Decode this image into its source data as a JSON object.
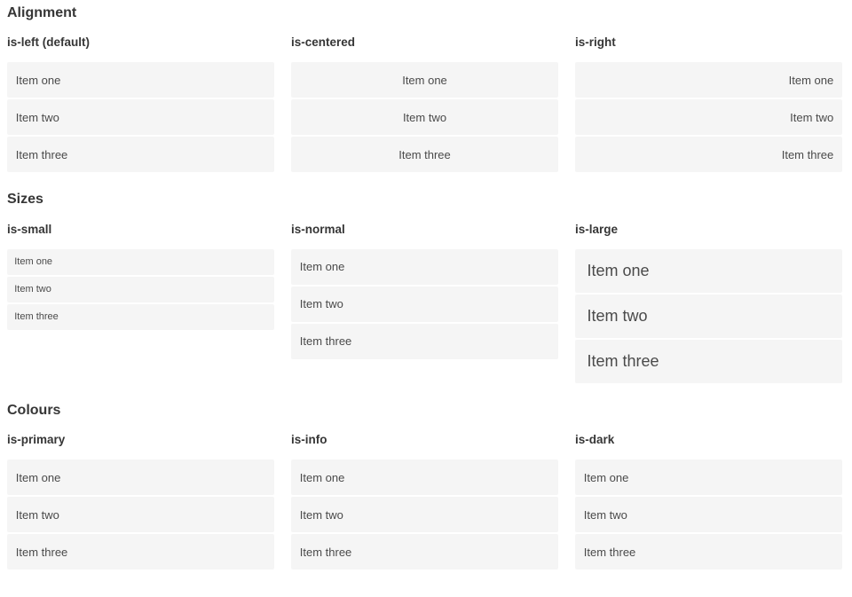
{
  "colors": {
    "item_background": "#f5f5f5",
    "item_text": "#4a4a4a",
    "heading_text": "#363636",
    "primary": "#00d1b2",
    "info": "#3298dc",
    "dark": "#363636",
    "text_on_color": "#ffffff"
  },
  "sections": [
    {
      "title": "Alignment",
      "columns": [
        {
          "label": "is-left (default)",
          "items": [
            "Item one",
            "Item two",
            "Item three"
          ]
        },
        {
          "label": "is-centered",
          "items": [
            "Item one",
            "Item two",
            "Item three"
          ]
        },
        {
          "label": "is-right",
          "items": [
            "Item one",
            "Item two",
            "Item three"
          ]
        }
      ]
    },
    {
      "title": "Sizes",
      "columns": [
        {
          "label": "is-small",
          "items": [
            "Item one",
            "Item two",
            "Item three"
          ]
        },
        {
          "label": "is-normal",
          "items": [
            "Item one",
            "Item two",
            "Item three"
          ]
        },
        {
          "label": "is-large",
          "items": [
            "Item one",
            "Item two",
            "Item three"
          ]
        }
      ]
    },
    {
      "title": "Colours",
      "columns": [
        {
          "label": "is-primary",
          "items": [
            "Item one",
            "Item two",
            "Item three"
          ]
        },
        {
          "label": "is-info",
          "items": [
            "Item one",
            "Item two",
            "Item three"
          ]
        },
        {
          "label": "is-dark",
          "items": [
            "Item one",
            "Item two",
            "Item three"
          ]
        }
      ]
    }
  ]
}
